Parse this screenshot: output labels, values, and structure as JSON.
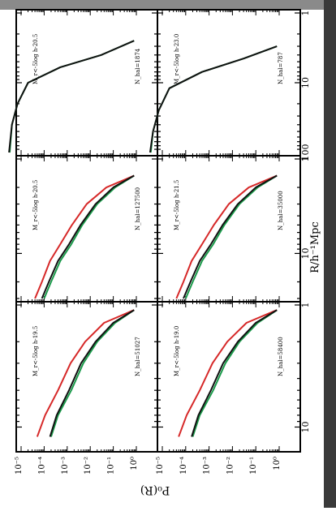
{
  "page": {
    "background": "#ffffff",
    "top_band_color": "#8a8a8a",
    "right_band_color": "#3a3a3a"
  },
  "chart_data": {
    "type": "line",
    "orientation_note": "figure rotated 90 degrees; x axis (R) runs top-to-bottom, y axis (P) runs right-to-left",
    "xlabel": "R/h⁻¹Mpc",
    "ylabel": "P₀(R)",
    "xscale": "log",
    "yscale": "log",
    "colors": {
      "black": "#111111",
      "green": "#1a9a4a",
      "red": "#d62828"
    },
    "panels": [
      {
        "id": "top-left",
        "row": 0,
        "col": 0,
        "label_mr": "M_r<-5log h-20.5",
        "label_nhal": "N_hal=1874",
        "xlim": [
          1,
          100
        ],
        "ylim": [
          1e-05,
          1
        ],
        "x_ticks": [
          1,
          10,
          100
        ],
        "x_tick_labels": [
          "1",
          "10",
          "100"
        ],
        "y_ticks": [],
        "y_tick_labels": [],
        "series": [
          {
            "color": "green",
            "x": [
              2.5,
              4,
              6,
              10,
              20,
              40,
              100
            ],
            "y": [
              0.8,
              0.03,
              0.0005,
              2e-05,
              7e-06,
              4e-06,
              3.2e-06
            ]
          },
          {
            "color": "black",
            "x": [
              2.5,
              4,
              6,
              10,
              20,
              40,
              100
            ],
            "y": [
              0.8,
              0.03,
              0.0005,
              2e-05,
              7e-06,
              4e-06,
              3e-06
            ]
          }
        ]
      },
      {
        "id": "top-middle",
        "row": 0,
        "col": 1,
        "label_mr": "M_r<-5log h-20.5",
        "label_nhal": "N_hal=127500",
        "xlim": [
          1,
          30
        ],
        "ylim": [
          1e-05,
          1
        ],
        "x_ticks": [
          1,
          10
        ],
        "x_tick_labels": [
          "1",
          "10"
        ],
        "y_ticks": [],
        "y_tick_labels": [],
        "series": [
          {
            "color": "green",
            "x": [
              1.5,
              2,
              3,
              5,
              8,
              12,
              20,
              30
            ],
            "y": [
              0.8,
              0.12,
              0.02,
              0.0045,
              0.0015,
              0.0005,
              0.0002,
              0.0001
            ]
          },
          {
            "color": "black",
            "x": [
              1.5,
              2,
              3,
              5,
              8,
              12,
              20,
              30
            ],
            "y": [
              0.8,
              0.1,
              0.017,
              0.0038,
              0.0012,
              0.0004,
              0.00016,
              8e-05
            ]
          },
          {
            "color": "red",
            "x": [
              1.5,
              2,
              3,
              5,
              8,
              12,
              20,
              30
            ],
            "y": [
              0.8,
              0.05,
              0.007,
              0.0016,
              0.0005,
              0.00018,
              8e-05,
              4e-05
            ]
          }
        ]
      },
      {
        "id": "top-right",
        "row": 0,
        "col": 2,
        "label_mr": "M_r<-5log h-19.5",
        "label_nhal": "N_hal=51027",
        "xlim": [
          1,
          15
        ],
        "ylim": [
          1e-05,
          1
        ],
        "x_ticks": [
          1,
          10
        ],
        "x_tick_labels": [
          "1",
          "10"
        ],
        "y_ticks": [
          1,
          0.1,
          0.01,
          0.001,
          0.0001,
          1e-05
        ],
        "y_tick_labels": [
          "10⁰",
          "10⁻¹",
          "10⁻²",
          "10⁻³",
          "10⁻⁴",
          "10⁻⁵"
        ],
        "series": [
          {
            "color": "green",
            "x": [
              1.1,
              1.4,
              2,
              3,
              5,
              8,
              12
            ],
            "y": [
              0.8,
              0.12,
              0.02,
              0.005,
              0.0015,
              0.0004,
              0.0002
            ]
          },
          {
            "color": "black",
            "x": [
              1.1,
              1.4,
              2,
              3,
              5,
              8,
              12
            ],
            "y": [
              0.8,
              0.1,
              0.017,
              0.004,
              0.0012,
              0.00035,
              0.00018
            ]
          },
          {
            "color": "red",
            "x": [
              1.1,
              1.4,
              2,
              3,
              5,
              8,
              12
            ],
            "y": [
              0.8,
              0.04,
              0.006,
              0.0014,
              0.0004,
              0.00011,
              5e-05
            ]
          }
        ]
      },
      {
        "id": "bottom-left",
        "row": 1,
        "col": 0,
        "label_mr": "M_r<-5log h-23.0",
        "label_nhal": "N_hal=787",
        "xlim": [
          1,
          100
        ],
        "ylim": [
          1e-05,
          1
        ],
        "x_ticks": [
          1,
          10,
          100
        ],
        "x_tick_labels": [
          "1",
          "10",
          "100"
        ],
        "y_ticks": [],
        "y_tick_labels": [],
        "series": [
          {
            "color": "green",
            "x": [
              3,
              4.5,
              7,
              12,
              25,
              50,
              100
            ],
            "y": [
              0.8,
              0.03,
              0.0005,
              2e-05,
              7e-06,
              4e-06,
              3.2e-06
            ]
          },
          {
            "color": "black",
            "x": [
              3,
              4.5,
              7,
              12,
              25,
              50,
              100
            ],
            "y": [
              0.8,
              0.03,
              0.0005,
              2e-05,
              7e-06,
              4e-06,
              3e-06
            ]
          }
        ]
      },
      {
        "id": "bottom-middle",
        "row": 1,
        "col": 1,
        "label_mr": "M_r<-5log h-21.5",
        "label_nhal": "N_hal=35000",
        "xlim": [
          1,
          30
        ],
        "ylim": [
          1e-05,
          1
        ],
        "x_ticks": [
          1,
          10
        ],
        "x_tick_labels": [
          "1",
          "10"
        ],
        "y_ticks": [],
        "y_tick_labels": [],
        "series": [
          {
            "color": "green",
            "x": [
              1.5,
              2,
              3,
              5,
              8,
              12,
              20,
              30
            ],
            "y": [
              0.8,
              0.12,
              0.02,
              0.0045,
              0.0015,
              0.0005,
              0.0002,
              0.0001
            ]
          },
          {
            "color": "black",
            "x": [
              1.5,
              2,
              3,
              5,
              8,
              12,
              20,
              30
            ],
            "y": [
              0.8,
              0.1,
              0.017,
              0.0038,
              0.0012,
              0.0004,
              0.00016,
              8e-05
            ]
          },
          {
            "color": "red",
            "x": [
              1.5,
              2,
              3,
              5,
              8,
              12,
              20,
              30
            ],
            "y": [
              0.8,
              0.05,
              0.007,
              0.0016,
              0.0005,
              0.00018,
              8e-05,
              4e-05
            ]
          }
        ]
      },
      {
        "id": "bottom-right",
        "row": 1,
        "col": 2,
        "label_mr": "M_r<-5log h-19.0",
        "label_nhal": "N_hal=58400",
        "xlim": [
          1,
          15
        ],
        "ylim": [
          1e-05,
          1
        ],
        "x_ticks": [
          1,
          10
        ],
        "x_tick_labels": [
          "1",
          "10"
        ],
        "y_ticks": [
          1,
          0.1,
          0.01,
          0.001,
          0.0001,
          1e-05
        ],
        "y_tick_labels": [
          "10⁰",
          "10⁻¹",
          "10⁻²",
          "10⁻³",
          "10⁻⁴",
          "10⁻⁵"
        ],
        "series": [
          {
            "color": "green",
            "x": [
              1.1,
              1.4,
              2,
              3,
              5,
              8,
              12
            ],
            "y": [
              0.8,
              0.12,
              0.02,
              0.005,
              0.0015,
              0.0004,
              0.0002
            ]
          },
          {
            "color": "black",
            "x": [
              1.1,
              1.4,
              2,
              3,
              5,
              8,
              12
            ],
            "y": [
              0.8,
              0.1,
              0.017,
              0.004,
              0.0012,
              0.00035,
              0.00018
            ]
          },
          {
            "color": "red",
            "x": [
              1.1,
              1.4,
              2,
              3,
              5,
              8,
              12
            ],
            "y": [
              0.8,
              0.04,
              0.006,
              0.0014,
              0.0004,
              0.00011,
              5e-05
            ]
          }
        ]
      }
    ]
  }
}
